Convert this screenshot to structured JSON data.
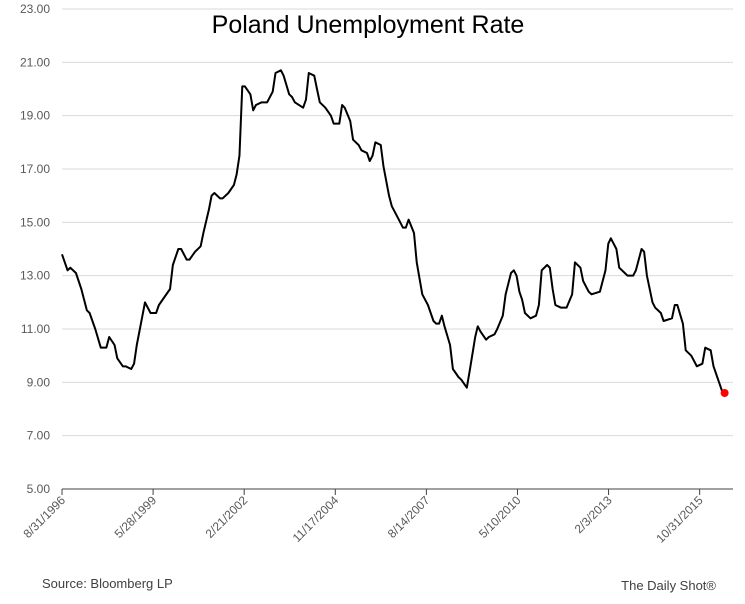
{
  "chart_data": {
    "type": "line",
    "title": "Poland Unemployment Rate",
    "source": "Source: Bloomberg LP",
    "credit": "The Daily Shot®",
    "grid": true,
    "end_marker_color": "#ff0000",
    "xlim": [
      "1996-08-31",
      "2016-10-31"
    ],
    "xticks": [
      {
        "value": "1996-08-31",
        "label": "8/31/1996"
      },
      {
        "value": "1999-05-28",
        "label": "5/28/1999"
      },
      {
        "value": "2002-02-21",
        "label": "2/21/2002"
      },
      {
        "value": "2004-11-17",
        "label": "11/17/2004"
      },
      {
        "value": "2007-08-14",
        "label": "8/14/2007"
      },
      {
        "value": "2010-05-10",
        "label": "5/10/2010"
      },
      {
        "value": "2013-02-03",
        "label": "2/3/2013"
      },
      {
        "value": "2015-10-31",
        "label": "10/31/2015"
      }
    ],
    "ylim": [
      5,
      23
    ],
    "yticks": [
      {
        "value": 5,
        "label": "5.00"
      },
      {
        "value": 7,
        "label": "7.00"
      },
      {
        "value": 9,
        "label": "9.00"
      },
      {
        "value": 11,
        "label": "11.00"
      },
      {
        "value": 13,
        "label": "13.00"
      },
      {
        "value": 15,
        "label": "15.00"
      },
      {
        "value": 17,
        "label": "17.00"
      },
      {
        "value": 19,
        "label": "19.00"
      },
      {
        "value": 21,
        "label": "21.00"
      },
      {
        "value": 23,
        "label": "23.00"
      }
    ],
    "x": [
      "1996-08-31",
      "1996-10-31",
      "1996-11-30",
      "1997-01-31",
      "1997-03-31",
      "1997-05-31",
      "1997-06-30",
      "1997-08-31",
      "1997-10-31",
      "1997-12-31",
      "1998-01-31",
      "1998-03-31",
      "1998-04-30",
      "1998-06-30",
      "1998-07-31",
      "1998-09-30",
      "1998-10-31",
      "1998-11-30",
      "1999-01-31",
      "1999-02-28",
      "1999-04-30",
      "1999-06-30",
      "1999-07-31",
      "1999-09-30",
      "1999-11-30",
      "1999-12-31",
      "2000-02-29",
      "2000-03-31",
      "2000-05-31",
      "2000-06-30",
      "2000-08-31",
      "2000-10-31",
      "2000-11-30",
      "2001-01-31",
      "2001-02-28",
      "2001-03-31",
      "2001-05-31",
      "2001-06-30",
      "2001-08-31",
      "2001-10-31",
      "2001-11-30",
      "2001-12-31",
      "2002-01-31",
      "2002-02-28",
      "2002-04-30",
      "2002-05-31",
      "2002-06-30",
      "2002-08-31",
      "2002-10-31",
      "2002-12-31",
      "2003-01-31",
      "2003-03-31",
      "2003-04-30",
      "2003-06-30",
      "2003-07-31",
      "2003-08-31",
      "2003-11-30",
      "2003-12-31",
      "2004-01-31",
      "2004-03-31",
      "2004-04-30",
      "2004-05-31",
      "2004-07-31",
      "2004-09-30",
      "2004-10-31",
      "2004-12-31",
      "2005-01-31",
      "2005-02-28",
      "2005-04-30",
      "2005-05-31",
      "2005-07-31",
      "2005-08-31",
      "2005-10-31",
      "2005-11-30",
      "2005-12-31",
      "2006-01-31",
      "2006-03-31",
      "2006-04-30",
      "2006-06-30",
      "2006-07-31",
      "2006-08-31",
      "2006-10-31",
      "2006-11-30",
      "2006-12-31",
      "2007-01-31",
      "2007-03-31",
      "2007-04-30",
      "2007-06-30",
      "2007-08-31",
      "2007-10-31",
      "2007-11-30",
      "2007-12-31",
      "2008-01-31",
      "2008-02-29",
      "2008-04-30",
      "2008-05-31",
      "2008-07-31",
      "2008-08-31",
      "2008-10-31",
      "2008-11-30",
      "2009-01-31",
      "2009-02-28",
      "2009-03-31",
      "2009-05-31",
      "2009-06-30",
      "2009-08-31",
      "2009-09-30",
      "2009-11-30",
      "2009-12-31",
      "2010-02-28",
      "2010-03-31",
      "2010-04-30",
      "2010-05-31",
      "2010-06-30",
      "2010-07-31",
      "2010-09-30",
      "2010-11-30",
      "2010-12-31",
      "2011-01-31",
      "2011-03-31",
      "2011-04-30",
      "2011-05-31",
      "2011-06-30",
      "2011-08-31",
      "2011-10-31",
      "2011-12-31",
      "2012-01-31",
      "2012-03-31",
      "2012-04-30",
      "2012-06-30",
      "2012-07-31",
      "2012-10-31",
      "2012-12-31",
      "2013-01-31",
      "2013-02-28",
      "2013-04-30",
      "2013-05-31",
      "2013-07-31",
      "2013-08-31",
      "2013-10-31",
      "2013-11-30",
      "2014-01-31",
      "2014-02-28",
      "2014-03-31",
      "2014-05-31",
      "2014-06-30",
      "2014-08-31",
      "2014-09-30",
      "2014-12-31",
      "2015-01-31",
      "2015-02-28",
      "2015-04-30",
      "2015-05-31",
      "2015-07-31",
      "2015-08-31",
      "2015-09-30",
      "2015-11-30",
      "2015-12-31",
      "2016-02-29",
      "2016-03-31",
      "2016-05-31",
      "2016-06-30",
      "2016-07-31"
    ],
    "series": [
      {
        "name": "Poland Unemployment Rate",
        "color": "#000000",
        "values": [
          13.8,
          13.2,
          13.3,
          13.1,
          12.5,
          11.7,
          11.6,
          11.0,
          10.3,
          10.3,
          10.7,
          10.4,
          9.9,
          9.6,
          9.6,
          9.5,
          9.7,
          10.4,
          11.5,
          12.0,
          11.6,
          11.6,
          11.9,
          12.2,
          12.5,
          13.4,
          14.0,
          14.0,
          13.6,
          13.6,
          13.9,
          14.1,
          14.6,
          15.5,
          16.0,
          16.1,
          15.9,
          15.9,
          16.1,
          16.4,
          16.8,
          17.5,
          20.1,
          20.1,
          19.8,
          19.2,
          19.4,
          19.5,
          19.5,
          19.9,
          20.6,
          20.7,
          20.5,
          19.8,
          19.7,
          19.5,
          19.3,
          19.6,
          20.6,
          20.5,
          20.0,
          19.5,
          19.3,
          19.0,
          18.7,
          18.7,
          19.4,
          19.3,
          18.8,
          18.1,
          17.9,
          17.7,
          17.6,
          17.3,
          17.5,
          18.0,
          17.9,
          17.1,
          16.0,
          15.6,
          15.4,
          15.0,
          14.8,
          14.8,
          15.1,
          14.6,
          13.5,
          12.3,
          11.9,
          11.3,
          11.2,
          11.2,
          11.5,
          11.1,
          10.4,
          9.5,
          9.2,
          9.1,
          8.8,
          9.4,
          10.7,
          11.1,
          10.9,
          10.6,
          10.7,
          10.8,
          11.0,
          11.5,
          12.3,
          13.1,
          13.2,
          13.0,
          12.4,
          12.1,
          11.6,
          11.4,
          11.5,
          11.9,
          13.2,
          13.4,
          13.3,
          12.5,
          11.9,
          11.8,
          11.8,
          12.3,
          13.5,
          13.3,
          12.8,
          12.4,
          12.3,
          12.4,
          13.2,
          14.2,
          14.4,
          14.0,
          13.3,
          13.1,
          13.0,
          13.0,
          13.2,
          14.0,
          13.9,
          13.0,
          12.0,
          11.8,
          11.6,
          11.3,
          11.4,
          11.9,
          11.9,
          11.2,
          10.2,
          10.0,
          9.8,
          9.6,
          9.7,
          10.3,
          10.2,
          9.6,
          9.0,
          8.7,
          8.6
        ]
      }
    ]
  }
}
